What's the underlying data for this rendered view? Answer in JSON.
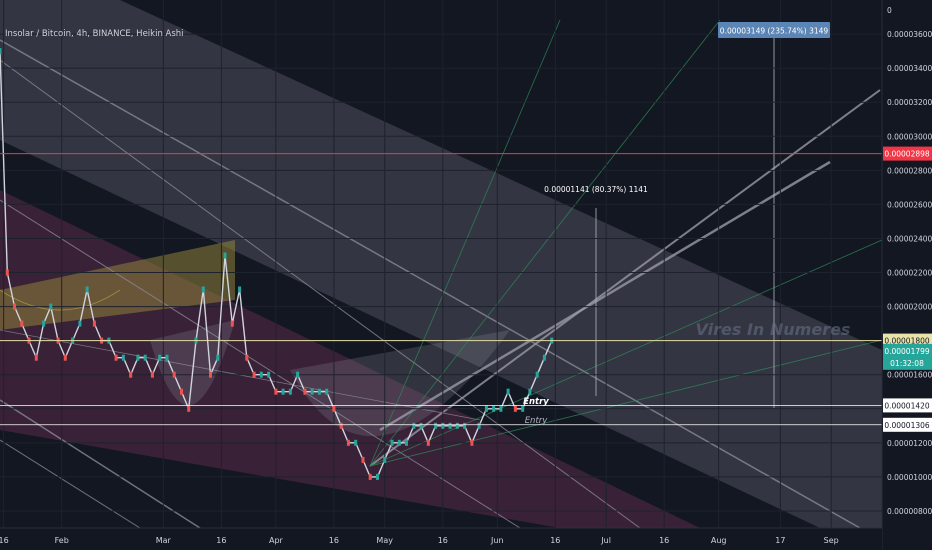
{
  "header": {
    "title": "Insolar / Bitcoin, 4h, BINANCE, Heikin Ashi"
  },
  "watermark": "Vires In Numeres",
  "chart_data": {
    "type": "line",
    "title": "Insolar / Bitcoin, 4h, BINANCE, Heikin Ashi",
    "ylim": [
      7e-07,
      3.8e-06
    ],
    "y_ticks": [
      "0",
      "0.00003600",
      "0.00003400",
      "0.00003200",
      "0.00003000",
      "0.00002800",
      "0.00002600",
      "0.00002400",
      "0.00002200",
      "0.00002000",
      "0.00001800",
      "0.00001600",
      "0.00001400",
      "0.00001200",
      "0.00001000",
      "0.00000800"
    ],
    "y_tick_values": [
      null,
      3.6e-06,
      3.4e-06,
      3.2e-06,
      3e-06,
      2.8e-06,
      2.6e-06,
      2.4e-06,
      2.2e-06,
      2e-06,
      1.8e-06,
      1.6e-06,
      1.4e-06,
      1.2e-06,
      1e-06,
      8e-07
    ],
    "x_ticks": [
      "16",
      "Feb",
      "Mar",
      "16",
      "Apr",
      "16",
      "May",
      "16",
      "Jun",
      "16",
      "Jul",
      "16",
      "Aug",
      "17",
      "Sep"
    ],
    "x_tick_days": [
      16,
      32,
      60,
      76,
      91,
      107,
      121,
      137,
      152,
      168,
      182,
      198,
      213,
      230,
      244
    ],
    "x_start_day": 15,
    "x_end_day": 258,
    "series": [
      {
        "x": [
          15,
          17,
          19,
          21,
          23,
          25,
          27,
          29,
          31,
          33,
          35,
          37,
          39,
          41,
          43,
          45,
          47,
          49,
          51,
          53,
          55,
          57,
          59,
          61,
          63,
          65,
          67,
          69,
          71,
          73,
          75,
          77,
          79,
          81,
          83,
          85,
          87,
          89,
          91,
          93,
          95,
          97,
          99,
          101,
          103,
          105,
          107,
          109,
          111,
          113,
          115,
          117,
          119,
          121,
          123,
          125,
          127,
          129,
          131,
          133,
          135,
          137,
          139,
          141,
          143,
          145,
          147,
          149,
          151,
          153,
          155,
          157,
          159,
          161,
          163,
          165,
          167
        ],
        "y": [
          3.5e-06,
          2.2e-06,
          2e-06,
          1.9e-06,
          1.8e-06,
          1.7e-06,
          1.9e-06,
          2e-06,
          1.8e-06,
          1.7e-06,
          1.8e-06,
          1.9e-06,
          2.1e-06,
          1.9e-06,
          1.8e-06,
          1.8e-06,
          1.7e-06,
          1.7e-06,
          1.6e-06,
          1.7e-06,
          1.7e-06,
          1.6e-06,
          1.7e-06,
          1.7e-06,
          1.6e-06,
          1.5e-06,
          1.4e-06,
          1.8e-06,
          2.1e-06,
          1.6e-06,
          1.7e-06,
          2.3e-06,
          1.9e-06,
          2.1e-06,
          1.7e-06,
          1.6e-06,
          1.6e-06,
          1.6e-06,
          1.5e-06,
          1.5e-06,
          1.5e-06,
          1.6e-06,
          1.5e-06,
          1.5e-06,
          1.5e-06,
          1.5e-06,
          1.4e-06,
          1.3e-06,
          1.2e-06,
          1.2e-06,
          1.1e-06,
          1e-06,
          1e-06,
          1.1e-06,
          1.2e-06,
          1.2e-06,
          1.2e-06,
          1.3e-06,
          1.3e-06,
          1.2e-06,
          1.3e-06,
          1.3e-06,
          1.3e-06,
          1.3e-06,
          1.3e-06,
          1.2e-06,
          1.3e-06,
          1.4e-06,
          1.4e-06,
          1.4e-06,
          1.5e-06,
          1.4e-06,
          1.4e-06,
          1.5e-06,
          1.6e-06,
          1.7e-06,
          1.8e-06
        ]
      }
    ],
    "price_labels": [
      {
        "value": "0.00002898",
        "y": 2.898e-06,
        "color": "#f23645"
      },
      {
        "value": "0.00001800",
        "y": 1.8e-06,
        "color": "#e8e3a8"
      },
      {
        "value": "0.00001799",
        "y": 1.74e-06,
        "color": "#26a69a"
      },
      {
        "value": "01:32:08",
        "y": 1.67e-06,
        "color": "#26a69a"
      },
      {
        "value": "0.00001420",
        "y": 1.42e-06,
        "color": "#ffffff"
      },
      {
        "value": "0.00001306",
        "y": 1.306e-06,
        "color": "#ffffff"
      }
    ],
    "annotations": [
      {
        "text": "0.00003149 (235.74%) 3149",
        "kind": "box"
      },
      {
        "text": "0.00001141 (80.37%) 1141",
        "kind": "label"
      },
      {
        "text": "Entry",
        "kind": "label-bold"
      },
      {
        "text": "Entry",
        "kind": "label-italic"
      }
    ]
  },
  "colors": {
    "background": "#131722",
    "price_line": "#d1d4dc",
    "resistance": "#f23645",
    "level_1800": "#e8e3a8",
    "channel_fill": "#5a2a48",
    "overlay_fill": "#8a8a96",
    "cup_fill": "#9a8a3a",
    "fib_green": "#2e8b57",
    "box_fill": "#5b85b5"
  }
}
